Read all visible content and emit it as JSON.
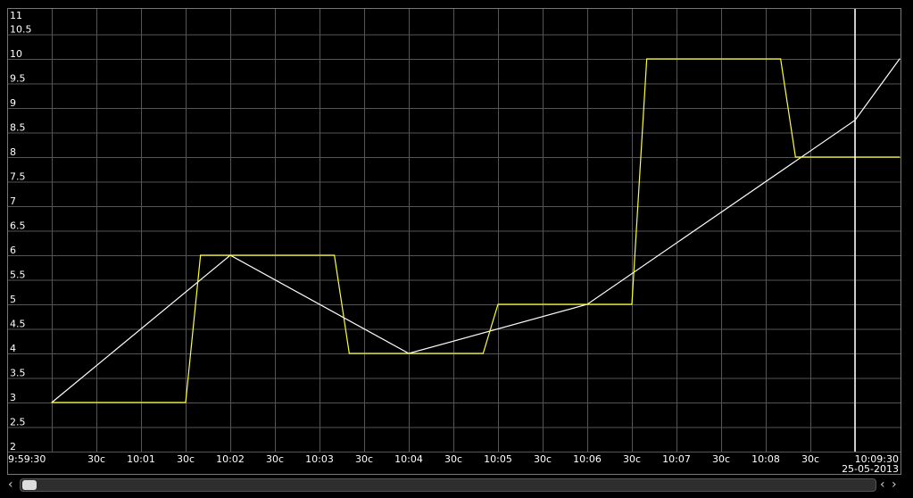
{
  "chart_data": {
    "type": "line",
    "xlim": [
      "9:59:30",
      "10:09:30"
    ],
    "ylim": [
      2,
      11
    ],
    "grid": true,
    "y_ticks": [
      "2",
      "2.5",
      "3",
      "3.5",
      "4",
      "4.5",
      "5",
      "5.5",
      "6",
      "6.5",
      "7",
      "7.5",
      "8",
      "8.5",
      "9",
      "9.5",
      "10",
      "10.5",
      "11"
    ],
    "x_ticks": [
      "9:59:30",
      "",
      "30c",
      "10:01",
      "30c",
      "10:02",
      "30c",
      "10:03",
      "30c",
      "10:04",
      "30c",
      "10:05",
      "30c",
      "10:06",
      "30c",
      "10:07",
      "30c",
      "10:08",
      "30c",
      "",
      "10:09:30"
    ],
    "date_label": "25-05-2013",
    "cursor_time": "10:09:00",
    "series": [
      {
        "color": "#ffffff",
        "points": [
          [
            "10:00:00",
            3
          ],
          [
            "10:02:00",
            6
          ],
          [
            "10:04:00",
            4
          ],
          [
            "10:06:00",
            5
          ],
          [
            "10:09:00",
            8.75
          ],
          [
            "10:09:30",
            10
          ]
        ]
      },
      {
        "color": "#ffff33",
        "points": [
          [
            "10:00:00",
            3
          ],
          [
            "10:01:30",
            3
          ],
          [
            "10:01:40",
            6
          ],
          [
            "10:03:10",
            6
          ],
          [
            "10:03:20",
            4
          ],
          [
            "10:04:50",
            4
          ],
          [
            "10:05:00",
            5
          ],
          [
            "10:06:30",
            5
          ],
          [
            "10:06:40",
            10
          ],
          [
            "10:08:10",
            10
          ],
          [
            "10:08:20",
            8
          ],
          [
            "10:09:30",
            8
          ]
        ]
      }
    ]
  },
  "colors": {
    "background": "#000000",
    "grid": "#555555",
    "cursor": "#ffffff"
  }
}
